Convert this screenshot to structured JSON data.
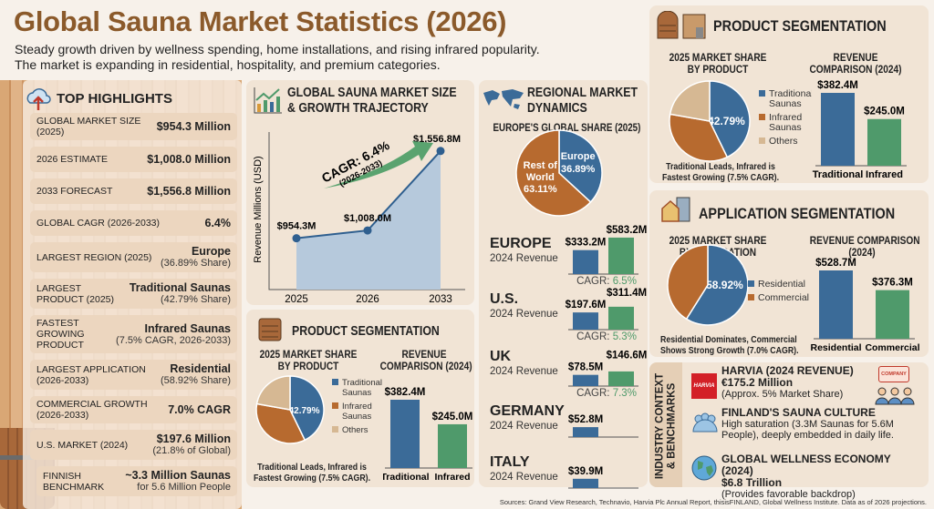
{
  "header": {
    "title": "Global Sauna Market Statistics (2026)",
    "subtitle_line1": "Steady growth driven by wellness spending, home installations, and rising infrared popularity.",
    "subtitle_line2": "The market is expanding in residential, hospitality, and premium categories."
  },
  "highlights": {
    "title": "TOP HIGHLIGHTS",
    "icon": "cloud-upload-icon",
    "items": [
      {
        "label": "GLOBAL MARKET SIZE (2025)",
        "value": "$954.3 Million",
        "sub": ""
      },
      {
        "label": "2026 ESTIMATE",
        "value": "$1,008.0 Million",
        "sub": ""
      },
      {
        "label": "2033 FORECAST",
        "value": "$1,556.8 Million",
        "sub": ""
      },
      {
        "label": "GLOBAL CAGR (2026-2033)",
        "value": "6.4%",
        "sub": ""
      },
      {
        "label": "LARGEST REGION (2025)",
        "value": "Europe",
        "sub": "(36.89% Share)"
      },
      {
        "label": "LARGEST PRODUCT (2025)",
        "value": "Traditional Saunas",
        "sub": "(42.79% Share)"
      },
      {
        "label": "FASTEST GROWING PRODUCT",
        "value": "Infrared Saunas",
        "sub": "(7.5% CAGR, 2026-2033)"
      },
      {
        "label": "LARGEST APPLICATION (2026-2033)",
        "value": "Residential",
        "sub": "(58.92% Share)"
      },
      {
        "label": "COMMERCIAL GROWTH (2026-2033)",
        "value": "7.0% CAGR",
        "sub": ""
      },
      {
        "label": "U.S. MARKET (2024)",
        "value": "$197.6 Million",
        "sub": "(21.8% of Global)"
      },
      {
        "label": "FINNISH BENCHMARK",
        "value": "~3.3 Million Saunas",
        "sub": "for 5.6 Million People"
      }
    ]
  },
  "growth_panel": {
    "title_line1": "GLOBAL SAUNA MARKET SIZE",
    "title_line2": "& GROWTH TRAJECTORY",
    "icon": "growth-chart-icon"
  },
  "regional_panel": {
    "title_line1": "REGIONAL MARKET",
    "title_line2": "DYNAMICS",
    "icon": "world-map-icon",
    "revenue_label": "2024 Revenue",
    "cagr_prefix": "CAGR: "
  },
  "product_panel": {
    "title": "PRODUCT SEGMENTATION",
    "pie_title_line1": "2025 MARKET SHARE",
    "pie_title_line2": "BY PRODUCT",
    "bar_title_line1": "REVENUE",
    "bar_title_line2": "COMPARISON (2024)",
    "caption_line1": "Traditional Leads, Infrared is",
    "caption_line2": "Fastest Growing (7.5% CAGR).",
    "icon": "sauna-cabin-icon"
  },
  "application_panel": {
    "title": "APPLICATION SEGMENTATION",
    "pie_title_line1": "2025 MARKET SHARE",
    "pie_title_line2": "BY APPLICATION",
    "bar_title_line1": "REVENUE COMPARISON",
    "bar_title_line2": "(2024)",
    "caption_line1": "Residential Dominates, Commercial",
    "caption_line2": "Shows Strong Growth (7.0% CAGR).",
    "icon": "house-building-icon"
  },
  "industry_panel": {
    "side_title_line1": "INDUSTRY CONTEXT",
    "side_title_line2": "& BENCHMARKS",
    "harvia": {
      "logo": "HARVIA",
      "title": "HARVIA (2024 REVENUE)",
      "value": "€175.2 Million",
      "sub": "(Approx. 5% Market Share)",
      "badge": "COMPANY"
    },
    "finland": {
      "title": "FINLAND'S SAUNA CULTURE",
      "line1": "High saturation (3.3M Saunas for 5.6M People),",
      "line2": "deeply embedded in daily life."
    },
    "wellness": {
      "title": "GLOBAL WELLNESS ECONOMY (2024)",
      "value": "$6.8 Trillion",
      "sub": "(Provides favorable backdrop)"
    }
  },
  "sources": "Sources: Grand View Research, Technavio, Harvia Plc Annual Report, thisisFINLAND, Global Wellness Institute. Data as of 2026 projections.",
  "colors": {
    "blue": "#3b6b98",
    "orange": "#b76a2f",
    "tan": "#d6b893",
    "green": "#4f9a6b",
    "brown": "#8b5a2b"
  },
  "chart_data": [
    {
      "type": "line",
      "ylabel": "Revenue Millions (USD)",
      "x": [
        "2025",
        "2026",
        "2033"
      ],
      "y": [
        954.3,
        1008.0,
        1556.8
      ],
      "labels": [
        "$954.3M",
        "$1,008.0M",
        "$1,556.8M"
      ],
      "annotation": "CAGR: 6.4%",
      "annotation_sub": "(2026-2033)",
      "grid": false
    },
    {
      "type": "pie",
      "title": "EUROPE'S GLOBAL SHARE (2025)",
      "slices": [
        {
          "name": "Europe",
          "value": 36.89,
          "label": "36.89%",
          "color": "#3b6b98"
        },
        {
          "name": "Rest of World",
          "value": 63.11,
          "label": "63.11%",
          "color": "#b76a2f"
        }
      ]
    },
    {
      "type": "bar",
      "categories": [
        "EUROPE",
        "U.S.",
        "UK",
        "GERMANY",
        "ITALY"
      ],
      "series": [
        {
          "values": [
            333.2,
            197.6,
            78.5,
            52.8,
            39.9
          ],
          "labels": [
            "$333.2M",
            "$197.6M",
            "$78.5M",
            "$52.8M",
            "$39.9M"
          ],
          "color": "#3b6b98"
        },
        {
          "values": [
            583.2,
            311.4,
            146.6,
            null,
            null
          ],
          "labels": [
            "$583.2M",
            "$311.4M",
            "$146.6M",
            "",
            ""
          ],
          "color": "#4f9a6b"
        }
      ],
      "cagr": [
        "6.5%",
        "5.3%",
        "7.3%",
        "",
        ""
      ]
    },
    {
      "type": "pie",
      "title": "2025 MARKET SHARE BY PRODUCT",
      "slices": [
        {
          "name": "Traditional Saunas",
          "value": 42.79,
          "label": "42.79%",
          "color": "#3b6b98"
        },
        {
          "name": "Infrared Saunas",
          "value": 35.0,
          "label": "",
          "color": "#b76a2f"
        },
        {
          "name": "Others",
          "value": 22.21,
          "label": "",
          "color": "#d6b893"
        }
      ],
      "legend_lines": [
        [
          "Traditional",
          "Saunas"
        ],
        [
          "Infrared",
          "Saunas"
        ],
        [
          "Others"
        ]
      ],
      "legend": "right"
    },
    {
      "type": "bar",
      "title": "REVENUE COMPARISON (2024)",
      "categories": [
        "Traditional",
        "Infrared"
      ],
      "values": [
        382.4,
        245.0
      ],
      "labels": [
        "$382.4M",
        "$245.0M"
      ],
      "colors": [
        "#3b6b98",
        "#4f9a6b"
      ]
    },
    {
      "type": "pie",
      "title": "2025 MARKET SHARE BY APPLICATION",
      "slices": [
        {
          "name": "Residential",
          "value": 58.92,
          "label": "58.92%",
          "color": "#3b6b98"
        },
        {
          "name": "Commercial",
          "value": 41.08,
          "label": "",
          "color": "#b76a2f"
        }
      ],
      "legend_lines": [
        [
          "Residential"
        ],
        [
          "Commercial"
        ]
      ],
      "legend": "right"
    },
    {
      "type": "bar",
      "title": "REVENUE COMPARISON (2024)",
      "categories": [
        "Residential",
        "Commercial"
      ],
      "values": [
        528.7,
        376.3
      ],
      "labels": [
        "$528.7M",
        "$376.3M"
      ],
      "colors": [
        "#3b6b98",
        "#4f9a6b"
      ]
    }
  ]
}
